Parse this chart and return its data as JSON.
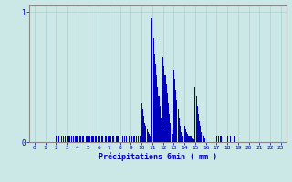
{
  "xlabel": "Précipitations 6min ( mm )",
  "background_color": "#cce8e6",
  "bar_color": "#0000bb",
  "grid_color": "#aacfcf",
  "axis_color": "#888888",
  "text_color": "#0000bb",
  "xlim": [
    -0.5,
    23.5
  ],
  "ylim": [
    0,
    1.05
  ],
  "ytick_labels": [
    "0",
    "1"
  ],
  "ytick_vals": [
    0,
    1
  ],
  "xtick_labels": [
    "0",
    "1",
    "2",
    "3",
    "4",
    "5",
    "6",
    "7",
    "8",
    "9",
    "10",
    "11",
    "12",
    "13",
    "14",
    "15",
    "16",
    "17",
    "18",
    "19",
    "20",
    "21",
    "22",
    "23"
  ],
  "n_intervals": 240,
  "precip": [
    0,
    0,
    0,
    0,
    0,
    0,
    0,
    0,
    0,
    0,
    0,
    0,
    0,
    0,
    0,
    0,
    0,
    0,
    0,
    0,
    0.04,
    0.04,
    0,
    0.04,
    0,
    0.04,
    0,
    0.04,
    0,
    0.04,
    0.04,
    0,
    0.04,
    0.04,
    0,
    0.04,
    0.04,
    0,
    0.04,
    0.04,
    0.04,
    0,
    0.04,
    0.04,
    0,
    0.04,
    0.04,
    0,
    0.04,
    0.04,
    0.04,
    0,
    0.04,
    0.04,
    0.04,
    0.04,
    0,
    0.04,
    0.04,
    0.04,
    0.04,
    0.04,
    0,
    0.04,
    0.04,
    0,
    0.04,
    0.04,
    0,
    0.04,
    0.04,
    0.04,
    0,
    0.04,
    0.04,
    0,
    0.04,
    0.04,
    0.04,
    0,
    0.04,
    0,
    0.04,
    0,
    0.04,
    0,
    0.04,
    0,
    0.04,
    0,
    0,
    0.04,
    0,
    0.04,
    0,
    0.04,
    0,
    0.04,
    0,
    0.04,
    0.3,
    0.25,
    0.2,
    0.15,
    0.12,
    0.1,
    0.08,
    0.06,
    0.05,
    0.04,
    0.95,
    0.8,
    0.68,
    0.6,
    0.52,
    0.42,
    0.35,
    0.28,
    0.18,
    0.1,
    0.65,
    0.58,
    0.52,
    0.45,
    0.38,
    0.3,
    0.22,
    0.15,
    0.1,
    0.06,
    0.55,
    0.48,
    0.4,
    0.32,
    0.25,
    0.18,
    0.12,
    0.08,
    0.06,
    0.04,
    0.12,
    0.1,
    0.08,
    0.06,
    0.05,
    0.04,
    0.04,
    0.03,
    0.03,
    0.02,
    0.42,
    0.35,
    0.28,
    0.22,
    0.16,
    0.12,
    0.08,
    0.06,
    0.04,
    0.03,
    0,
    0,
    0,
    0,
    0,
    0,
    0,
    0,
    0,
    0,
    0.04,
    0,
    0.04,
    0,
    0.04,
    0,
    0,
    0.04,
    0,
    0,
    0.04,
    0,
    0,
    0.04,
    0,
    0,
    0.04,
    0,
    0,
    0,
    0,
    0,
    0,
    0,
    0,
    0,
    0,
    0,
    0,
    0,
    0,
    0,
    0,
    0,
    0,
    0,
    0,
    0,
    0,
    0,
    0,
    0,
    0,
    0,
    0,
    0,
    0,
    0,
    0,
    0,
    0,
    0,
    0,
    0,
    0,
    0,
    0,
    0,
    0,
    0,
    0,
    0,
    0,
    0,
    0,
    0,
    0,
    0,
    0,
    0
  ]
}
